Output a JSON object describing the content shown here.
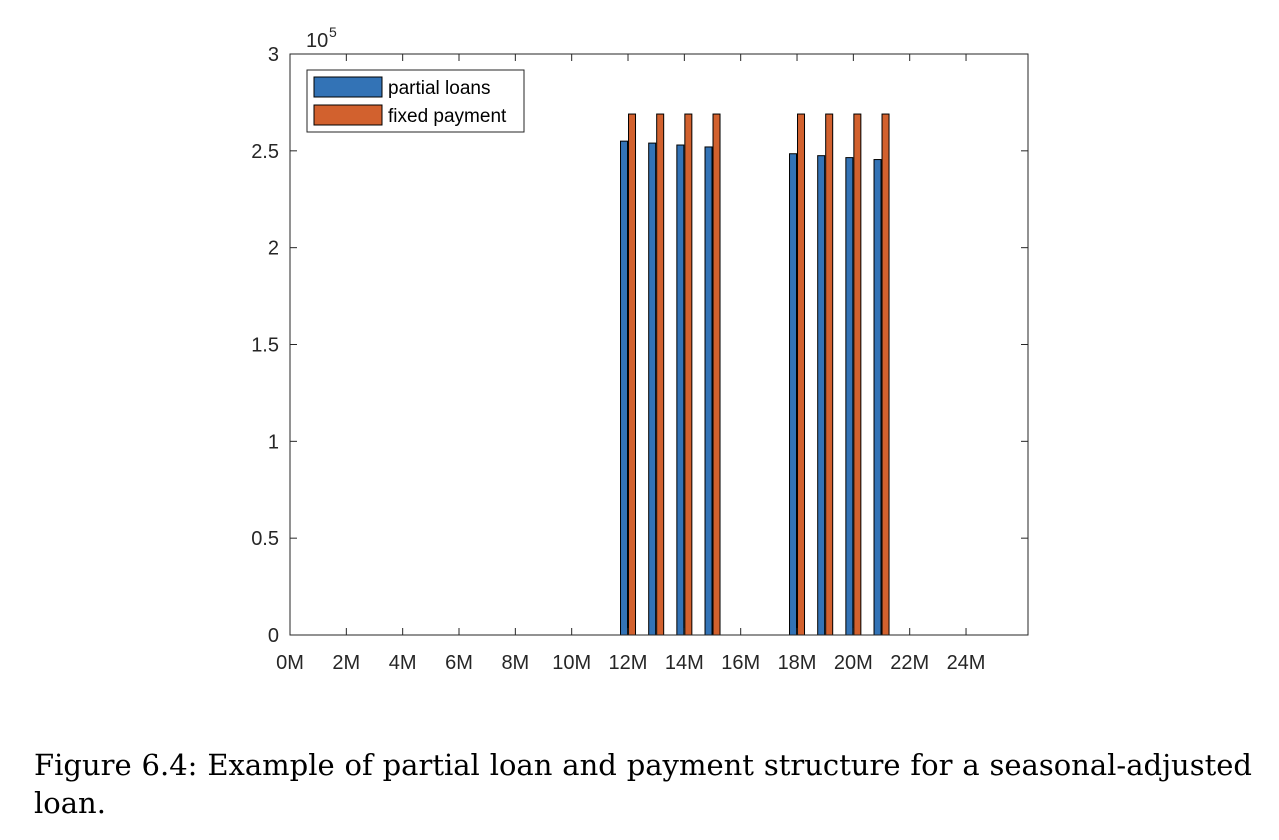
{
  "figure": {
    "caption": "Figure 6.4: Example of partial loan and payment structure for a seasonal-adjusted loan."
  },
  "chart_data": {
    "type": "bar",
    "title": "",
    "xlabel": "",
    "ylabel": "",
    "y_exponent_base": "10",
    "y_exponent_power": "5",
    "x_values": [
      12,
      13,
      14,
      15,
      18,
      19,
      20,
      21
    ],
    "x_tick_values": [
      0,
      2,
      4,
      6,
      8,
      10,
      12,
      14,
      16,
      18,
      20,
      22,
      24
    ],
    "x_tick_labels": [
      "0M",
      "2M",
      "4M",
      "6M",
      "8M",
      "10M",
      "12M",
      "14M",
      "16M",
      "18M",
      "20M",
      "22M",
      "24M"
    ],
    "xlim": [
      0,
      26.2
    ],
    "y_tick_values": [
      0,
      0.5,
      1,
      1.5,
      2,
      2.5,
      3
    ],
    "y_tick_labels": [
      "0",
      "0.5",
      "1",
      "1.5",
      "2",
      "2.5",
      "3"
    ],
    "ylim": [
      0,
      3
    ],
    "grid": false,
    "legend_position": "top-left",
    "series": [
      {
        "name": "partial loans",
        "color": "#3373B6",
        "values": [
          2.55,
          2.54,
          2.53,
          2.52,
          2.485,
          2.475,
          2.465,
          2.455
        ]
      },
      {
        "name": "fixed payment",
        "color": "#D2612E",
        "values": [
          2.69,
          2.69,
          2.69,
          2.69,
          2.69,
          2.69,
          2.69,
          2.69
        ]
      }
    ]
  }
}
